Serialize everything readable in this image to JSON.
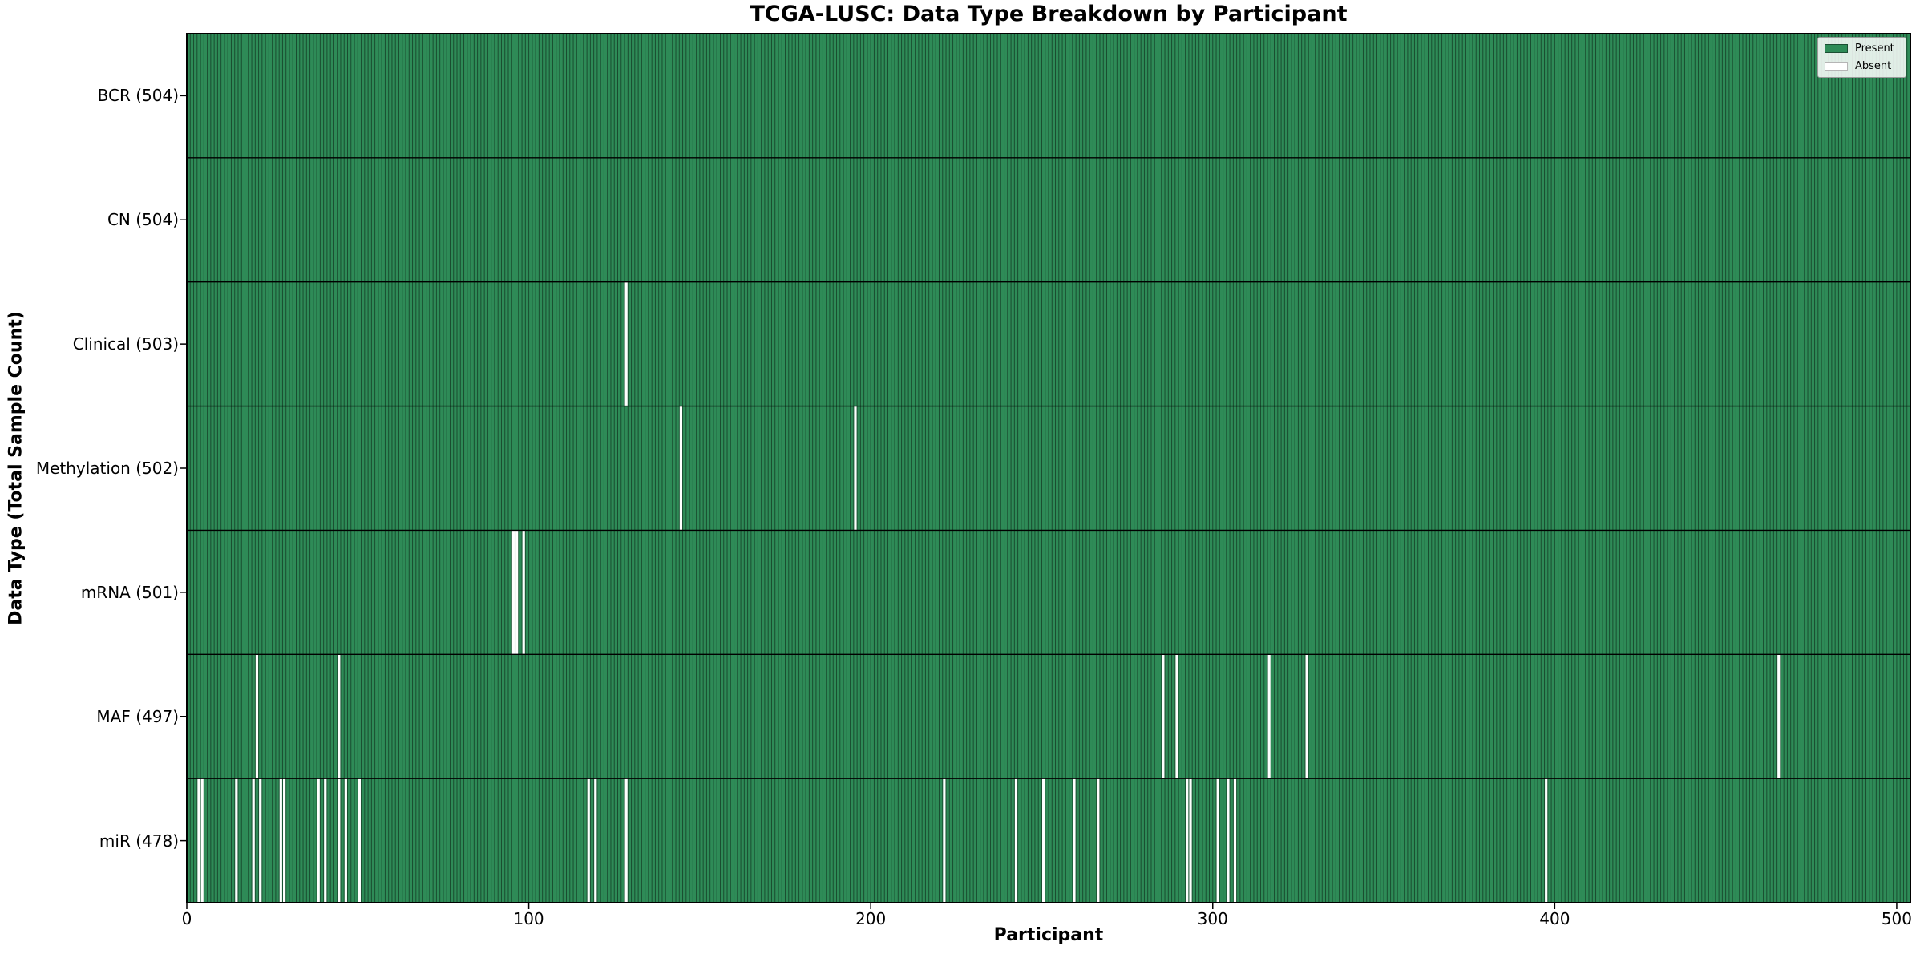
{
  "chart_data": {
    "type": "heatmap",
    "title": "TCGA-LUSC: Data Type Breakdown by Participant",
    "xlabel": "Participant",
    "ylabel": "Data Type (Total Sample Count)",
    "n_participants": 504,
    "xlim": [
      0,
      504
    ],
    "x_ticks": [
      0,
      100,
      200,
      300,
      400,
      500
    ],
    "grid": false,
    "legend_position": "upper right",
    "legend": {
      "present_label": "Present",
      "absent_label": "Absent"
    },
    "colors": {
      "present": "#2e8b57",
      "absent": "#ffffff",
      "bar_edge": "rgba(0,0,0,0.45)",
      "row_divider": "#000000",
      "plot_border": "#000000",
      "background": "#ffffff"
    },
    "rows": [
      {
        "label": "BCR (504)",
        "data_type": "BCR",
        "present_count": 504,
        "absent_participants": []
      },
      {
        "label": "CN (504)",
        "data_type": "CN",
        "present_count": 504,
        "absent_participants": []
      },
      {
        "label": "Clinical (503)",
        "data_type": "Clinical",
        "present_count": 503,
        "absent_participants": [
          128
        ]
      },
      {
        "label": "Methylation (502)",
        "data_type": "Methylation",
        "present_count": 502,
        "absent_participants": [
          144,
          195
        ]
      },
      {
        "label": "mRNA (501)",
        "data_type": "mRNA",
        "present_count": 501,
        "absent_participants": [
          95,
          96,
          98
        ]
      },
      {
        "label": "MAF (497)",
        "data_type": "MAF",
        "present_count": 497,
        "absent_participants": [
          20,
          44,
          285,
          289,
          316,
          327,
          465
        ]
      },
      {
        "label": "miR (478)",
        "data_type": "miR",
        "present_count": 478,
        "absent_participants": [
          3,
          4,
          14,
          19,
          21,
          27,
          28,
          38,
          40,
          44,
          46,
          50,
          117,
          119,
          128,
          221,
          242,
          250,
          259,
          266,
          292,
          293,
          301,
          304,
          306,
          397
        ]
      }
    ]
  }
}
